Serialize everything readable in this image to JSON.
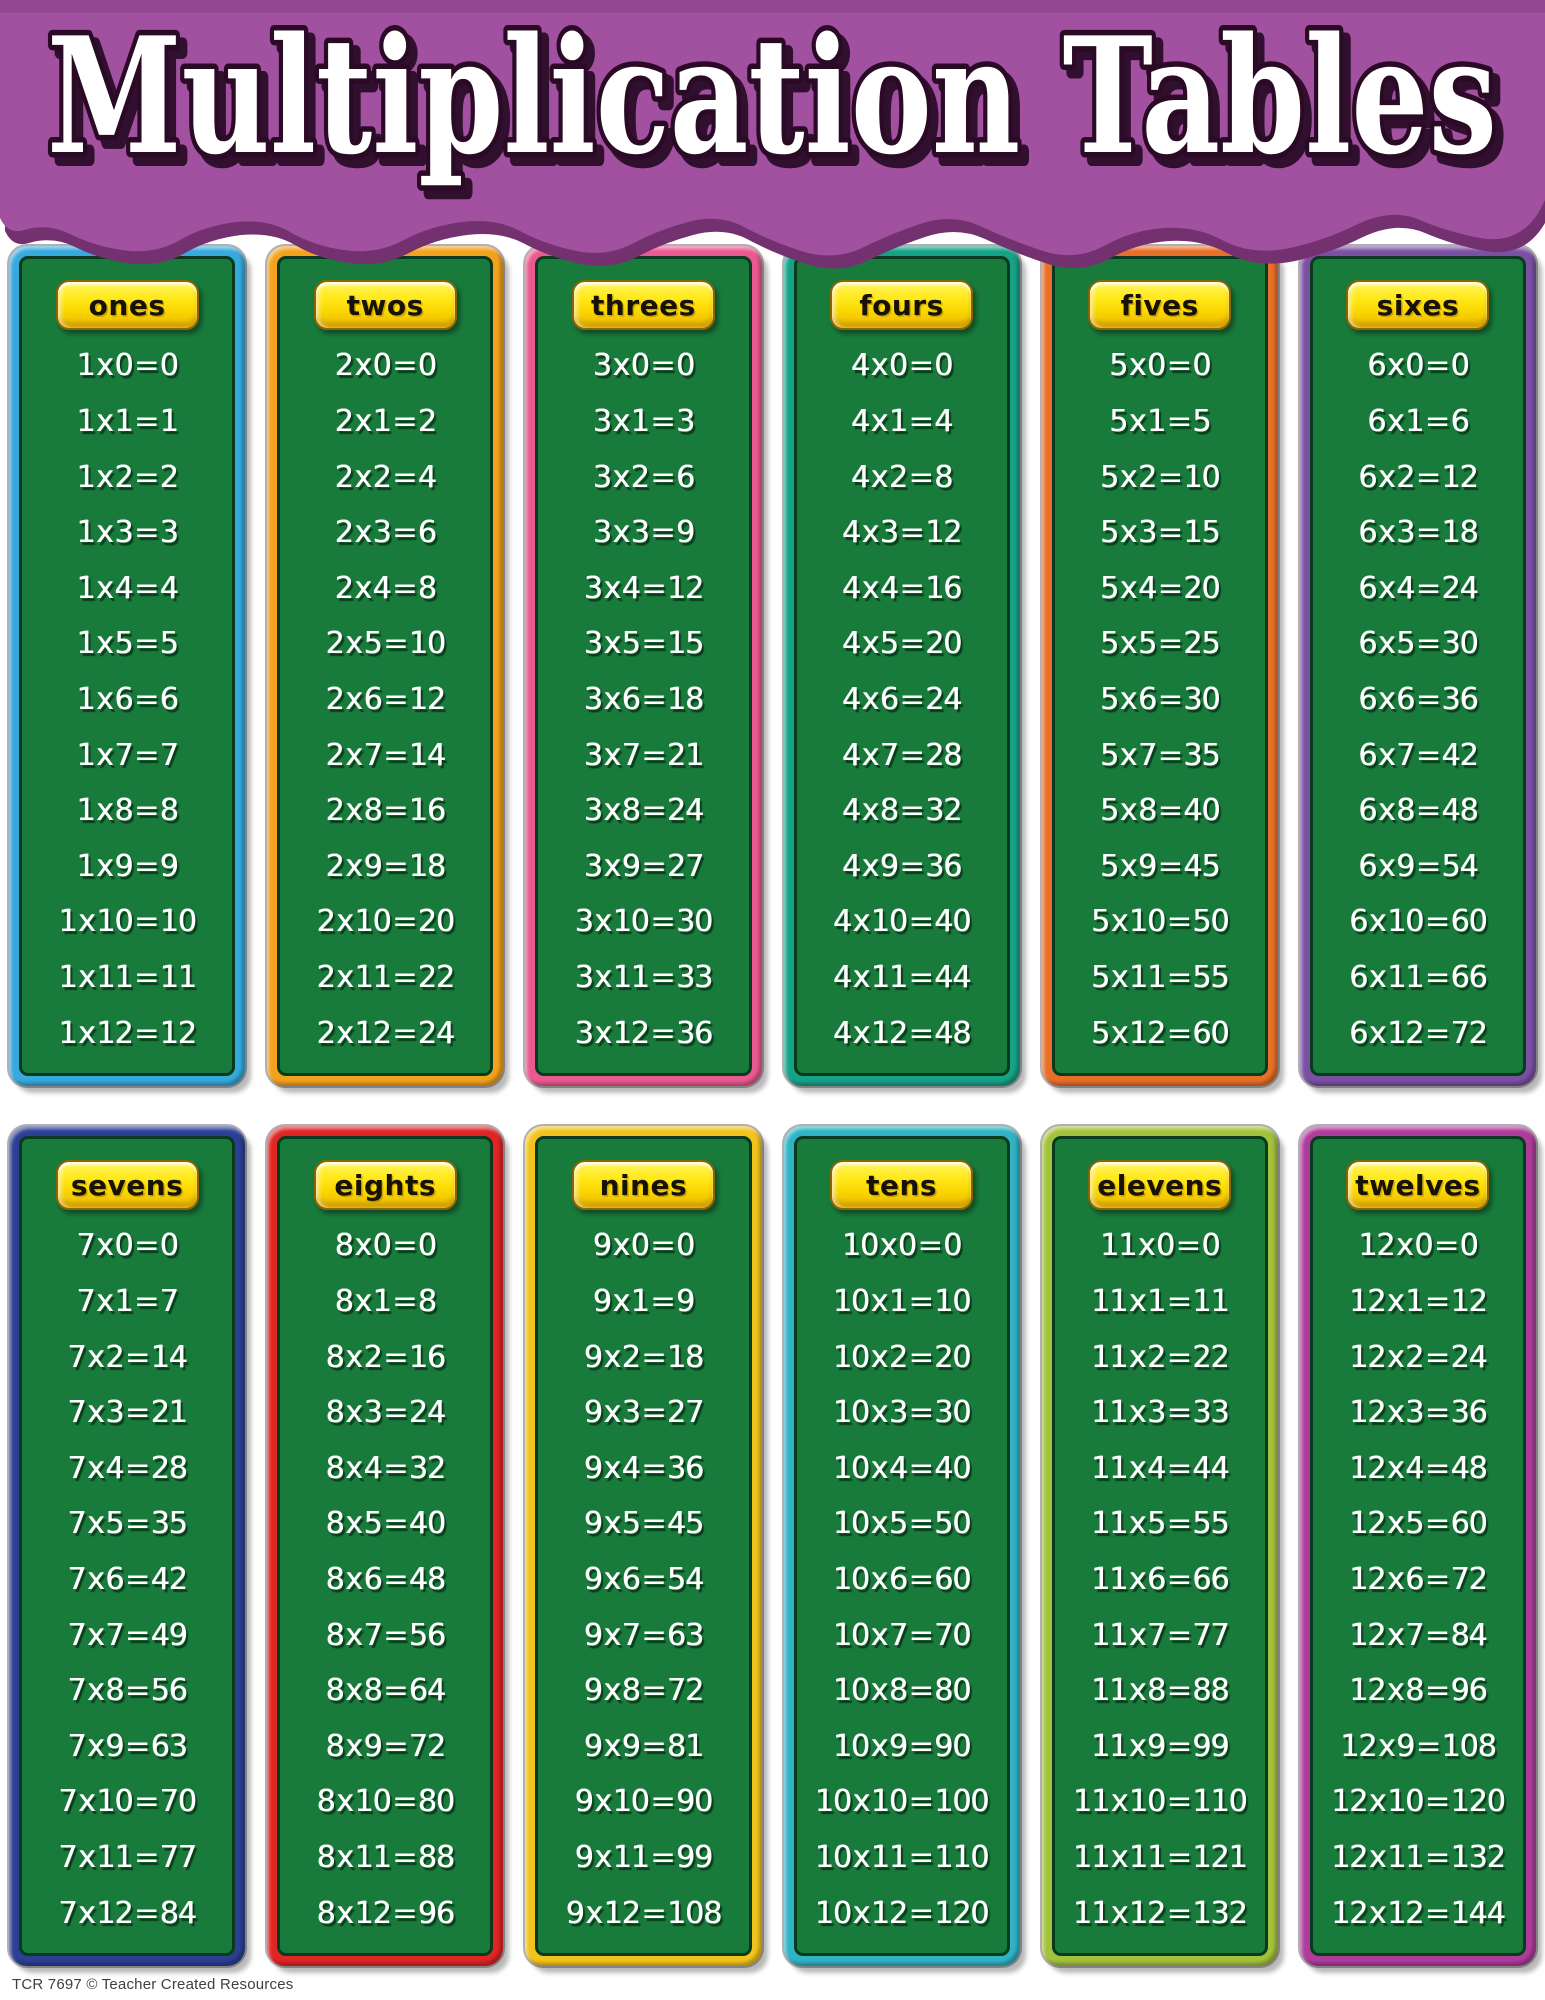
{
  "title": "Multiplication Tables",
  "footer": "TCR 7697  © Teacher Created Resources",
  "theme": {
    "banner_purple": "#a1519f",
    "banner_shadow": "#74316f",
    "title_fill": "#ffffff",
    "title_outline": "#2b0a26",
    "board_green": "#187a3b",
    "board_outline": "#0a3a1e",
    "pill_yellow": "#ffe816",
    "pill_border": "#8a6500",
    "equation_text": "#ffffff"
  },
  "tables": [
    {
      "label": "ones",
      "border_color": "#36a9dd",
      "equations": [
        "1 x 0 = 0",
        "1 x 1 = 1",
        "1 x 2 = 2",
        "1 x 3 = 3",
        "1 x 4 = 4",
        "1 x 5 = 5",
        "1 x 6 = 6",
        "1 x 7 = 7",
        "1 x 8 = 8",
        "1 x 9 = 9",
        "1 x 10 = 10",
        "1 x 11 = 11",
        "1 x 12 = 12"
      ]
    },
    {
      "label": "twos",
      "border_color": "#f2a21c",
      "equations": [
        "2 x 0 = 0",
        "2 x 1 = 2",
        "2 x 2 = 4",
        "2 x 3 = 6",
        "2 x 4 = 8",
        "2 x 5 = 10",
        "2 x 6 = 12",
        "2 x 7 = 14",
        "2 x 8 = 16",
        "2 x 9 = 18",
        "2 x 10 = 20",
        "2 x 11 = 22",
        "2 x 12 = 24"
      ]
    },
    {
      "label": "threes",
      "border_color": "#ea5a90",
      "equations": [
        "3 x 0 = 0",
        "3 x 1 = 3",
        "3 x 2 = 6",
        "3 x 3 = 9",
        "3 x 4 = 12",
        "3 x 5 = 15",
        "3 x 6 = 18",
        "3 x 7 = 21",
        "3 x 8 = 24",
        "3 x 9 = 27",
        "3 x 10 = 30",
        "3 x 11 = 33",
        "3 x 12 = 36"
      ]
    },
    {
      "label": "fours",
      "border_color": "#16a287",
      "equations": [
        "4 x 0 = 0",
        "4 x 1 = 4",
        "4 x 2 = 8",
        "4 x 3 = 12",
        "4 x 4 = 16",
        "4 x 5 = 20",
        "4 x 6 = 24",
        "4 x 7 = 28",
        "4 x 8 = 32",
        "4 x 9 = 36",
        "4 x 10 = 40",
        "4 x 11 = 44",
        "4 x 12 = 48"
      ]
    },
    {
      "label": "fives",
      "border_color": "#e86f27",
      "equations": [
        "5 x 0 = 0",
        "5 x 1 = 5",
        "5 x 2 = 10",
        "5 x 3 = 15",
        "5 x 4 = 20",
        "5 x 5 = 25",
        "5 x 6 = 30",
        "5 x 7 = 35",
        "5 x 8 = 40",
        "5 x 9 = 45",
        "5 x 10 = 50",
        "5 x 11 = 55",
        "5 x 12 = 60"
      ]
    },
    {
      "label": "sixes",
      "border_color": "#7b50a3",
      "equations": [
        "6 x 0 = 0",
        "6 x 1 = 6",
        "6 x 2 = 12",
        "6 x 3 = 18",
        "6 x 4 = 24",
        "6 x 5 = 30",
        "6 x 6 = 36",
        "6 x 7 = 42",
        "6 x 8 = 48",
        "6 x 9 = 54",
        "6 x 10 = 60",
        "6 x 11 = 66",
        "6 x 12 = 72"
      ]
    },
    {
      "label": "sevens",
      "border_color": "#2b3f94",
      "equations": [
        "7 x 0 = 0",
        "7 x 1 = 7",
        "7 x 2 = 14",
        "7 x 3 = 21",
        "7 x 4 = 28",
        "7 x 5 = 35",
        "7 x 6 = 42",
        "7 x 7 = 49",
        "7 x 8 = 56",
        "7 x 9 = 63",
        "7 x 10 = 70",
        "7 x 11 = 77",
        "7 x 12 = 84"
      ]
    },
    {
      "label": "eights",
      "border_color": "#e02525",
      "equations": [
        "8 x 0 = 0",
        "8 x 1 = 8",
        "8 x 2 = 16",
        "8 x 3 = 24",
        "8 x 4 = 32",
        "8 x 5 = 40",
        "8 x 6 = 48",
        "8 x 7 = 56",
        "8 x 8 = 64",
        "8 x 9 = 72",
        "8 x 10 = 80",
        "8 x 11 = 88",
        "8 x 12 = 96"
      ]
    },
    {
      "label": "nines",
      "border_color": "#f2c31d",
      "equations": [
        "9 x 0 = 0",
        "9 x 1 = 9",
        "9 x 2 = 18",
        "9 x 3 = 27",
        "9 x 4 = 36",
        "9 x 5 = 45",
        "9 x 6 = 54",
        "9 x 7 = 63",
        "9 x 8 = 72",
        "9 x 9 = 81",
        "9 x 10 = 90",
        "9 x 11 = 99",
        "9 x 12 = 108"
      ]
    },
    {
      "label": "tens",
      "border_color": "#2fb3c5",
      "equations": [
        "10 x 0 = 0",
        "10 x 1 = 10",
        "10 x 2 = 20",
        "10 x 3 = 30",
        "10 x 4 = 40",
        "10 x 5 = 50",
        "10 x 6 = 60",
        "10 x 7 = 70",
        "10 x 8 = 80",
        "10 x 9 = 90",
        "10 x 10 = 100",
        "10 x 11 = 110",
        "10 x 12 = 120"
      ]
    },
    {
      "label": "elevens",
      "border_color": "#a3c23b",
      "equations": [
        "11 x 0 = 0",
        "11 x 1 = 11",
        "11 x 2 = 22",
        "11 x 3 = 33",
        "11 x 4 = 44",
        "11 x 5 = 55",
        "11 x 6 = 66",
        "11 x 7 = 77",
        "11 x 8 = 88",
        "11 x 9 = 99",
        "11 x 10 = 110",
        "11 x 11 = 121",
        "11 x 12 = 132"
      ]
    },
    {
      "label": "twelves",
      "border_color": "#ae3c9b",
      "equations": [
        "12 x 0 = 0",
        "12 x 1 = 12",
        "12 x 2 = 24",
        "12 x 3 = 36",
        "12 x 4 = 48",
        "12 x 5 = 60",
        "12 x 6 = 72",
        "12 x 7 = 84",
        "12 x 8 = 96",
        "12 x 9 = 108",
        "12 x 10 = 120",
        "12 x 11 = 132",
        "12 x 12 = 144"
      ]
    }
  ]
}
